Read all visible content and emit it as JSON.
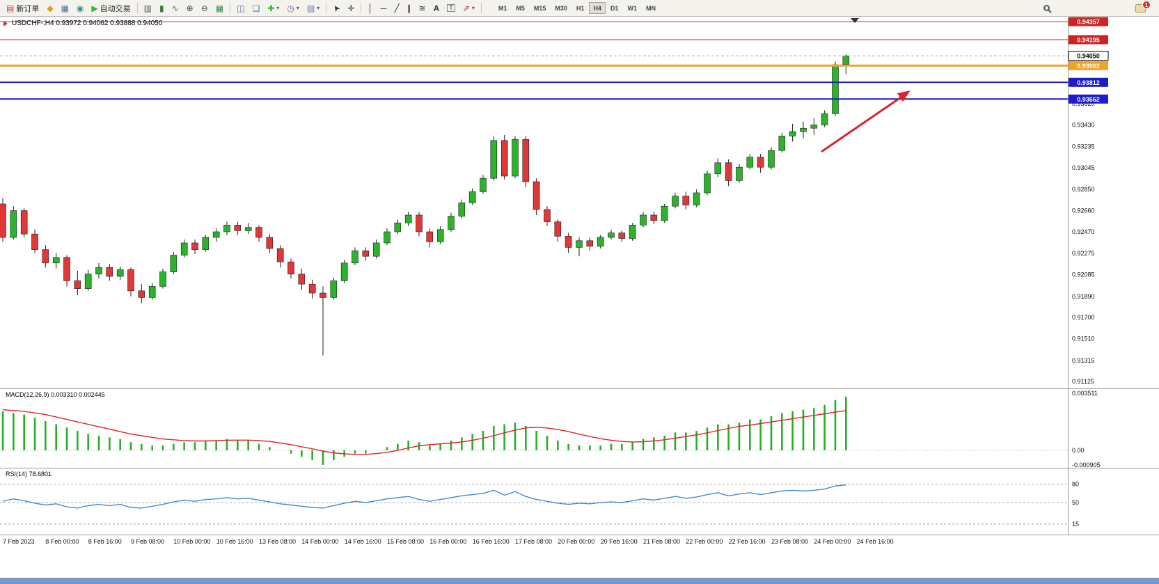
{
  "toolbar": {
    "new_order": "新订单",
    "autotrade": "自动交易",
    "timeframes": [
      "M1",
      "M5",
      "M15",
      "M30",
      "H1",
      "H4",
      "D1",
      "W1",
      "MN"
    ],
    "active_timeframe": "H4",
    "notification_badge": "1"
  },
  "icons": {
    "new_order": "▤",
    "market_watch": "◆",
    "data_window": "▦",
    "navigator": "◉",
    "autotrade_play": "▶",
    "bars_chart": "▥",
    "candle_chart": "▮",
    "line_chart": "∿",
    "zoom_in": "⊕",
    "zoom_out": "⊖",
    "tile_windows": "▦",
    "arrange_windows": "◫",
    "cascade_windows": "❏",
    "new_chart": "✚",
    "profiles": "◷",
    "indicators_menu": "▨",
    "caret": "▾",
    "cursor": "➤",
    "crosshair": "✛",
    "vertical_line": "│",
    "horizontal_line": "─",
    "trend_line": "╱",
    "channel": "∥",
    "fibonacci": "≋",
    "text": "A",
    "text_label": "T",
    "shapes": "⇗"
  },
  "chart": {
    "symbol_line": "USDCHF-,H4  0.93972 0.94062 0.93888 0.94050",
    "current_price": {
      "label": "0.94050",
      "price": 0.9405
    },
    "price_levels": [
      {
        "price": 0.94357,
        "label": "0.94357",
        "color": "#cc2424",
        "width": 1
      },
      {
        "price": 0.94195,
        "label": "0.94195",
        "color": "#cc2424",
        "width": 1
      },
      {
        "price": 0.93962,
        "label": "0.93962",
        "color": "#efa32b",
        "width": 3
      },
      {
        "price": 0.93812,
        "label": "0.93812",
        "color": "#1d1dc9",
        "width": 2
      },
      {
        "price": 0.93662,
        "label": "0.93662",
        "color": "#1d1dc9",
        "width": 2
      }
    ],
    "y_axis_labels": [
      "0.93620",
      "0.93430",
      "0.93235",
      "0.93045",
      "0.92850",
      "0.92660",
      "0.92470",
      "0.92275",
      "0.92085",
      "0.91890",
      "0.91700",
      "0.91510",
      "0.91315",
      "0.91125"
    ],
    "x_axis_labels": [
      "7 Feb 2023",
      "8 Feb 00:00",
      "8 Feb 16:00",
      "9 Feb 08:00",
      "10 Feb 00:00",
      "10 Feb 16:00",
      "13 Feb 08:00",
      "14 Feb 00:00",
      "14 Feb 16:00",
      "15 Feb 08:00",
      "16 Feb 00:00",
      "16 Feb 16:00",
      "17 Feb 08:00",
      "20 Feb 00:00",
      "20 Feb 16:00",
      "21 Feb 08:00",
      "22 Feb 00:00",
      "22 Feb 16:00",
      "23 Feb 08:00",
      "24 Feb 00:00",
      "24 Feb 16:00"
    ]
  },
  "macd": {
    "label": "MACD(12,26,9) 0.003310 0.002445",
    "axis_labels": [
      {
        "value": 0.003511,
        "text": "0.003511"
      },
      {
        "value": 0,
        "text": "0.00"
      },
      {
        "value": -0.000905,
        "text": "-0.000905"
      }
    ]
  },
  "rsi": {
    "label": "RSI(14) 78.6801",
    "levels": [
      {
        "value": 80,
        "text": "80"
      },
      {
        "value": 50,
        "text": "50"
      },
      {
        "value": 15,
        "text": "15"
      }
    ]
  },
  "chart_data": {
    "type": "candlestick",
    "symbol": "USDCHF-",
    "timeframe": "H4",
    "bull_color": "#2bb32b",
    "bear_color": "#df3838",
    "outline_color": "#1c1c1c",
    "macd_bar_color": "#25b025",
    "macd_signal_color": "#e02424",
    "rsi_color": "#3d8bd4",
    "arrow_color": "#d42626",
    "candles_ohlc_1e5": [
      [
        92720,
        92770,
        92380,
        92420
      ],
      [
        92420,
        92700,
        92400,
        92660
      ],
      [
        92660,
        92680,
        92420,
        92450
      ],
      [
        92450,
        92490,
        92280,
        92310
      ],
      [
        92310,
        92350,
        92150,
        92190
      ],
      [
        92190,
        92280,
        92140,
        92240
      ],
      [
        92240,
        92260,
        91980,
        92030
      ],
      [
        92030,
        92120,
        91900,
        91960
      ],
      [
        91960,
        92130,
        91940,
        92090
      ],
      [
        92090,
        92190,
        92050,
        92150
      ],
      [
        92150,
        92180,
        92030,
        92070
      ],
      [
        92070,
        92160,
        92040,
        92130
      ],
      [
        92130,
        92150,
        91890,
        91940
      ],
      [
        91940,
        92000,
        91830,
        91880
      ],
      [
        91880,
        92010,
        91860,
        91980
      ],
      [
        91980,
        92140,
        91960,
        92110
      ],
      [
        92110,
        92290,
        92090,
        92260
      ],
      [
        92260,
        92400,
        92240,
        92370
      ],
      [
        92370,
        92400,
        92270,
        92310
      ],
      [
        92310,
        92440,
        92290,
        92420
      ],
      [
        92420,
        92500,
        92380,
        92470
      ],
      [
        92470,
        92560,
        92440,
        92530
      ],
      [
        92530,
        92560,
        92440,
        92480
      ],
      [
        92480,
        92550,
        92450,
        92510
      ],
      [
        92510,
        92530,
        92380,
        92420
      ],
      [
        92420,
        92450,
        92280,
        92320
      ],
      [
        92320,
        92350,
        92150,
        92200
      ],
      [
        92200,
        92230,
        92050,
        92090
      ],
      [
        92090,
        92140,
        91950,
        92000
      ],
      [
        92000,
        92040,
        91870,
        91920
      ],
      [
        91920,
        91980,
        91360,
        91880
      ],
      [
        91880,
        92060,
        91860,
        92030
      ],
      [
        92030,
        92220,
        92010,
        92190
      ],
      [
        92190,
        92330,
        92170,
        92300
      ],
      [
        92300,
        92330,
        92210,
        92250
      ],
      [
        92250,
        92400,
        92230,
        92370
      ],
      [
        92370,
        92500,
        92350,
        92470
      ],
      [
        92470,
        92580,
        92450,
        92550
      ],
      [
        92550,
        92650,
        92520,
        92620
      ],
      [
        92620,
        92650,
        92430,
        92470
      ],
      [
        92470,
        92500,
        92330,
        92380
      ],
      [
        92380,
        92520,
        92360,
        92490
      ],
      [
        92490,
        92640,
        92470,
        92610
      ],
      [
        92610,
        92760,
        92590,
        92730
      ],
      [
        92730,
        92860,
        92710,
        92830
      ],
      [
        92830,
        92980,
        92810,
        92950
      ],
      [
        92950,
        93330,
        92930,
        93290
      ],
      [
        93290,
        93340,
        92940,
        92970
      ],
      [
        92970,
        93330,
        92950,
        93300
      ],
      [
        93300,
        93330,
        92870,
        92920
      ],
      [
        92920,
        92950,
        92620,
        92670
      ],
      [
        92670,
        92700,
        92520,
        92560
      ],
      [
        92560,
        92580,
        92380,
        92430
      ],
      [
        92430,
        92460,
        92280,
        92330
      ],
      [
        92330,
        92420,
        92250,
        92390
      ],
      [
        92390,
        92420,
        92300,
        92340
      ],
      [
        92340,
        92440,
        92320,
        92420
      ],
      [
        92420,
        92490,
        92400,
        92460
      ],
      [
        92460,
        92480,
        92380,
        92410
      ],
      [
        92410,
        92550,
        92390,
        92530
      ],
      [
        92530,
        92650,
        92510,
        92620
      ],
      [
        92620,
        92650,
        92540,
        92570
      ],
      [
        92570,
        92720,
        92550,
        92700
      ],
      [
        92700,
        92820,
        92680,
        92790
      ],
      [
        92790,
        92830,
        92670,
        92710
      ],
      [
        92710,
        92850,
        92690,
        92820
      ],
      [
        92820,
        93020,
        92800,
        92990
      ],
      [
        92990,
        93130,
        92960,
        93090
      ],
      [
        93090,
        93120,
        92880,
        92930
      ],
      [
        92930,
        93080,
        92910,
        93050
      ],
      [
        93050,
        93170,
        93030,
        93140
      ],
      [
        93140,
        93170,
        93000,
        93050
      ],
      [
        93050,
        93230,
        93030,
        93200
      ],
      [
        93200,
        93360,
        93180,
        93330
      ],
      [
        93330,
        93440,
        93280,
        93370
      ],
      [
        93370,
        93460,
        93310,
        93400
      ],
      [
        93400,
        93490,
        93340,
        93430
      ],
      [
        93430,
        93560,
        93410,
        93530
      ],
      [
        93530,
        94000,
        93510,
        93970
      ],
      [
        93972,
        94062,
        93888,
        94050
      ]
    ],
    "macd_histogram_1e4": [
      24,
      23,
      22,
      20,
      18,
      16,
      14,
      12,
      10,
      9,
      8,
      7,
      5,
      4,
      3,
      3,
      4,
      5,
      5,
      6,
      6,
      7,
      6,
      6,
      4,
      2,
      0,
      -2,
      -4,
      -6,
      -9,
      -6,
      -4,
      -2,
      -2,
      0,
      2,
      4,
      6,
      5,
      3,
      4,
      6,
      8,
      10,
      12,
      15,
      16,
      17,
      15,
      12,
      9,
      6,
      4,
      3,
      3,
      3,
      4,
      4,
      5,
      7,
      8,
      9,
      11,
      11,
      12,
      14,
      16,
      16,
      17,
      19,
      19,
      21,
      23,
      24,
      25,
      26,
      28,
      31,
      33.1
    ],
    "macd_signal_1e4": [
      25,
      24.5,
      24,
      23,
      22,
      20.5,
      19,
      17.5,
      16,
      14.5,
      13,
      11.5,
      10,
      9,
      8,
      7,
      6.5,
      6,
      5.8,
      5.8,
      6,
      6.2,
      6.3,
      6.3,
      6,
      5.5,
      4.5,
      3.5,
      2.2,
      1,
      -0.5,
      -1.5,
      -2.2,
      -2.5,
      -2.5,
      -2,
      -1.2,
      0,
      1.5,
      2.8,
      3.5,
      4,
      4.5,
      5.2,
      6.2,
      7.5,
      9,
      10.8,
      12.5,
      13.8,
      14.2,
      13.8,
      12.8,
      11.5,
      10,
      8.5,
      7.2,
      6.2,
      5.5,
      5.2,
      5.3,
      5.8,
      6.5,
      7.5,
      8.5,
      9.5,
      10.8,
      12.2,
      13.5,
      14.8,
      15.5,
      16.5,
      17.5,
      18.5,
      19.5,
      20.5,
      21.5,
      22.5,
      23.5,
      24.45
    ],
    "rsi_values": [
      52,
      56,
      53,
      49,
      46,
      48,
      43,
      41,
      45,
      47,
      45,
      47,
      42,
      41,
      44,
      47,
      51,
      54,
      52,
      55,
      56,
      58,
      56,
      57,
      54,
      51,
      48,
      46,
      44,
      42,
      41,
      45,
      49,
      52,
      50,
      53,
      56,
      58,
      60,
      55,
      52,
      55,
      58,
      61,
      63,
      65,
      70,
      62,
      68,
      60,
      55,
      52,
      49,
      47,
      49,
      48,
      50,
      51,
      50,
      53,
      56,
      54,
      57,
      60,
      57,
      59,
      63,
      66,
      61,
      64,
      66,
      63,
      66,
      69,
      70,
      69,
      70,
      72,
      77,
      78.7
    ]
  }
}
